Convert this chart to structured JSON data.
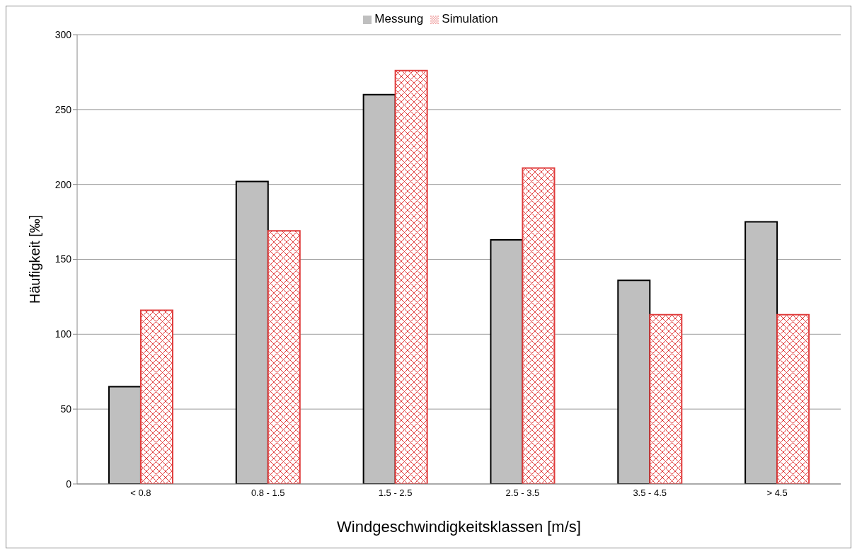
{
  "chart_data": {
    "type": "bar",
    "xlabel": "Windgeschwindigkeitsklassen [m/s]",
    "ylabel": "Häufigkeit [‰]",
    "categories": [
      "< 0.8",
      "0.8 - 1.5",
      "1.5 - 2.5",
      "2.5 - 3.5",
      "3.5 - 4.5",
      "> 4.5"
    ],
    "series": [
      {
        "name": "Messung",
        "color": "#bfbfbf",
        "values": [
          65,
          202,
          260,
          163,
          136,
          175
        ]
      },
      {
        "name": "Simulation",
        "color": "#e03c3c",
        "values": [
          116,
          169,
          276,
          211,
          113,
          113
        ]
      }
    ],
    "ylim": [
      0,
      300
    ],
    "yticks": [
      0,
      50,
      100,
      150,
      200,
      250,
      300
    ],
    "grid": "y",
    "legend": "top"
  }
}
